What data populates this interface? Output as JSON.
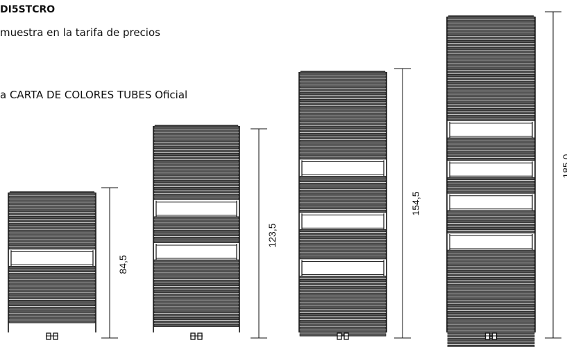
{
  "header": {
    "code": "DI5STCRO",
    "line1": "muestra en la tarifa de precios",
    "line2": "a CARTA DE COLORES TUBES Oficial"
  },
  "radiators": [
    {
      "dimension": "84,5",
      "panels": [
        {
          "stripes": 17
        },
        {
          "gap": true
        },
        {
          "stripes": 17
        }
      ]
    },
    {
      "dimension": "123,5",
      "panels": [
        {
          "stripes": 22
        },
        {
          "gap": true
        },
        {
          "stripes": 8
        },
        {
          "gap": true
        },
        {
          "stripes": 20
        }
      ]
    },
    {
      "dimension": "154,5",
      "panels": [
        {
          "stripes": 26
        },
        {
          "gap": true
        },
        {
          "stripes": 11
        },
        {
          "gap": true
        },
        {
          "stripes": 9
        },
        {
          "gap": true
        },
        {
          "stripes": 18
        }
      ]
    },
    {
      "dimension": "185,0",
      "panels": [
        {
          "stripes": 31
        },
        {
          "gap": true
        },
        {
          "stripes": 7
        },
        {
          "gap": true
        },
        {
          "stripes": 5
        },
        {
          "gap": true
        },
        {
          "stripes": 7
        },
        {
          "gap": true
        },
        {
          "stripes": 32
        }
      ]
    }
  ],
  "colors": {
    "line": "#111111"
  }
}
